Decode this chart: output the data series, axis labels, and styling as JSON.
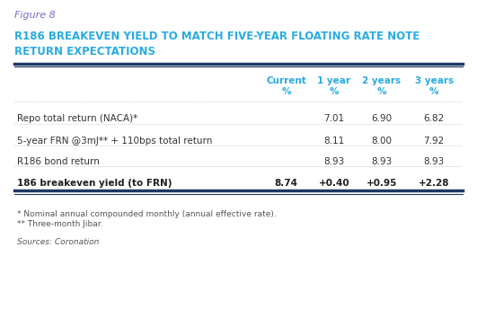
{
  "figure_label": "Figure 8",
  "title_line1": "R186 BREAKEVEN YIELD TO MATCH FIVE-YEAR FLOATING RATE NOTE",
  "title_line2": "RETURN EXPECTATIONS",
  "header_cols": [
    "Current\n%",
    "1 year\n%",
    "2 years\n%",
    "3 years\n%"
  ],
  "rows": [
    {
      "label": "Repo total return (NACA)*",
      "vals": [
        "",
        "7.01",
        "6.90",
        "6.82"
      ],
      "bold": false
    },
    {
      "label": "5-year FRN @3mJ** + 110bps total return",
      "vals": [
        "",
        "8.11",
        "8.00",
        "7.92"
      ],
      "bold": false
    },
    {
      "label": "R186 bond return",
      "vals": [
        "",
        "8.93",
        "8.93",
        "8.93"
      ],
      "bold": false
    },
    {
      "label": "186 breakeven yield (to FRN)",
      "vals": [
        "8.74",
        "+0.40",
        "+0.95",
        "+2.28"
      ],
      "bold": true
    }
  ],
  "footnote1": "* Nominal annual compounded monthly (annual effective rate).",
  "footnote2": "** Three-month Jibar.",
  "source": "Sources: Coronation",
  "teal_color": "#29ABE2",
  "navy_color": "#1F3864",
  "title_color": "#29ABE2",
  "figure_label_color": "#7B68C8",
  "bg_color": "#FFFFFF",
  "text_color": "#333333",
  "bold_row_color": "#1F1F1F",
  "dotted_color": "#BBBBBB",
  "line_color": "#1F3864"
}
